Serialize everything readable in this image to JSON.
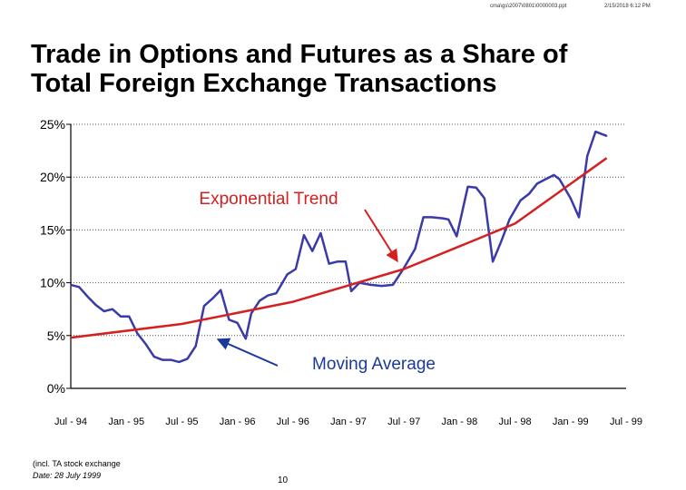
{
  "header": {
    "file_path": "cma\\gs\\2007\\0801\\0000003.ppt",
    "datetime": "2/15/2018 6:12 PM"
  },
  "title_line1": "Trade in Options and Futures as a Share of",
  "title_line2": "Total Foreign Exchange Transactions",
  "footer": {
    "note": "(incl. TA stock exchange",
    "date": "Date:  28 July 1999",
    "page": "10"
  },
  "colors": {
    "moving_average": "#3a3aa8",
    "trend": "#d42020",
    "annotation_trend": "#d42020",
    "annotation_ma": "#1a3a9a"
  },
  "chart_data": {
    "type": "line",
    "ylim": [
      0,
      25
    ],
    "y_ticks": [
      "0%",
      "5%",
      "10%",
      "15%",
      "20%",
      "25%"
    ],
    "x_ticks": [
      "Jul - 94",
      "Jan - 95",
      "Jul - 95",
      "Jan - 96",
      "Jul - 96",
      "Jan - 97",
      "Jul - 97",
      "Jan - 98",
      "Jul - 98",
      "Jan - 99",
      "Jul - 99"
    ],
    "grid": "horizontal dashed",
    "annotations": [
      "Exponential Trend",
      "Moving Average"
    ],
    "series": [
      {
        "values": [
          [
            0.0,
            9.8
          ],
          [
            0.3,
            9.6
          ],
          [
            0.6,
            8.7
          ],
          [
            0.9,
            7.9
          ],
          [
            1.2,
            7.3
          ],
          [
            1.5,
            7.5
          ],
          [
            1.8,
            6.8
          ],
          [
            2.1,
            6.8
          ],
          [
            2.4,
            5.2
          ],
          [
            2.7,
            4.2
          ],
          [
            3.0,
            3.0
          ],
          [
            3.3,
            2.7
          ],
          [
            3.6,
            2.7
          ],
          [
            3.9,
            2.5
          ],
          [
            4.2,
            2.8
          ],
          [
            4.5,
            4.0
          ],
          [
            4.8,
            7.8
          ],
          [
            5.1,
            8.5
          ],
          [
            5.4,
            9.3
          ],
          [
            5.7,
            6.5
          ],
          [
            6.0,
            6.2
          ],
          [
            6.3,
            4.7
          ],
          [
            6.5,
            7.1
          ],
          [
            6.8,
            8.3
          ],
          [
            7.1,
            8.8
          ],
          [
            7.4,
            9.0
          ],
          [
            7.8,
            10.8
          ],
          [
            8.1,
            11.3
          ],
          [
            8.4,
            14.5
          ],
          [
            8.7,
            13.0
          ],
          [
            9.0,
            14.7
          ],
          [
            9.3,
            11.8
          ],
          [
            9.6,
            12.0
          ],
          [
            9.9,
            12.0
          ],
          [
            10.1,
            9.2
          ],
          [
            10.4,
            10.0
          ],
          [
            10.8,
            9.8
          ],
          [
            11.2,
            9.7
          ],
          [
            11.6,
            9.8
          ],
          [
            12.0,
            11.4
          ],
          [
            12.4,
            13.2
          ],
          [
            12.7,
            16.2
          ],
          [
            13.0,
            16.2
          ],
          [
            13.4,
            16.1
          ],
          [
            13.6,
            16.0
          ],
          [
            13.9,
            14.4
          ],
          [
            14.3,
            19.1
          ],
          [
            14.6,
            19.0
          ],
          [
            14.9,
            18.0
          ],
          [
            15.2,
            12.0
          ],
          [
            15.5,
            13.9
          ],
          [
            15.8,
            16.0
          ],
          [
            16.2,
            17.8
          ],
          [
            16.5,
            18.4
          ],
          [
            16.8,
            19.4
          ],
          [
            17.1,
            19.8
          ],
          [
            17.4,
            20.2
          ],
          [
            17.6,
            19.8
          ],
          [
            18.0,
            18.0
          ],
          [
            18.3,
            16.2
          ],
          [
            18.6,
            22.0
          ],
          [
            18.9,
            24.3
          ],
          [
            19.3,
            23.9
          ]
        ]
      },
      {
        "values": [
          [
            0,
            4.8
          ],
          [
            4,
            6.1
          ],
          [
            8,
            8.2
          ],
          [
            12,
            11.3
          ],
          [
            16,
            15.6
          ],
          [
            19.3,
            21.8
          ]
        ]
      }
    ]
  }
}
